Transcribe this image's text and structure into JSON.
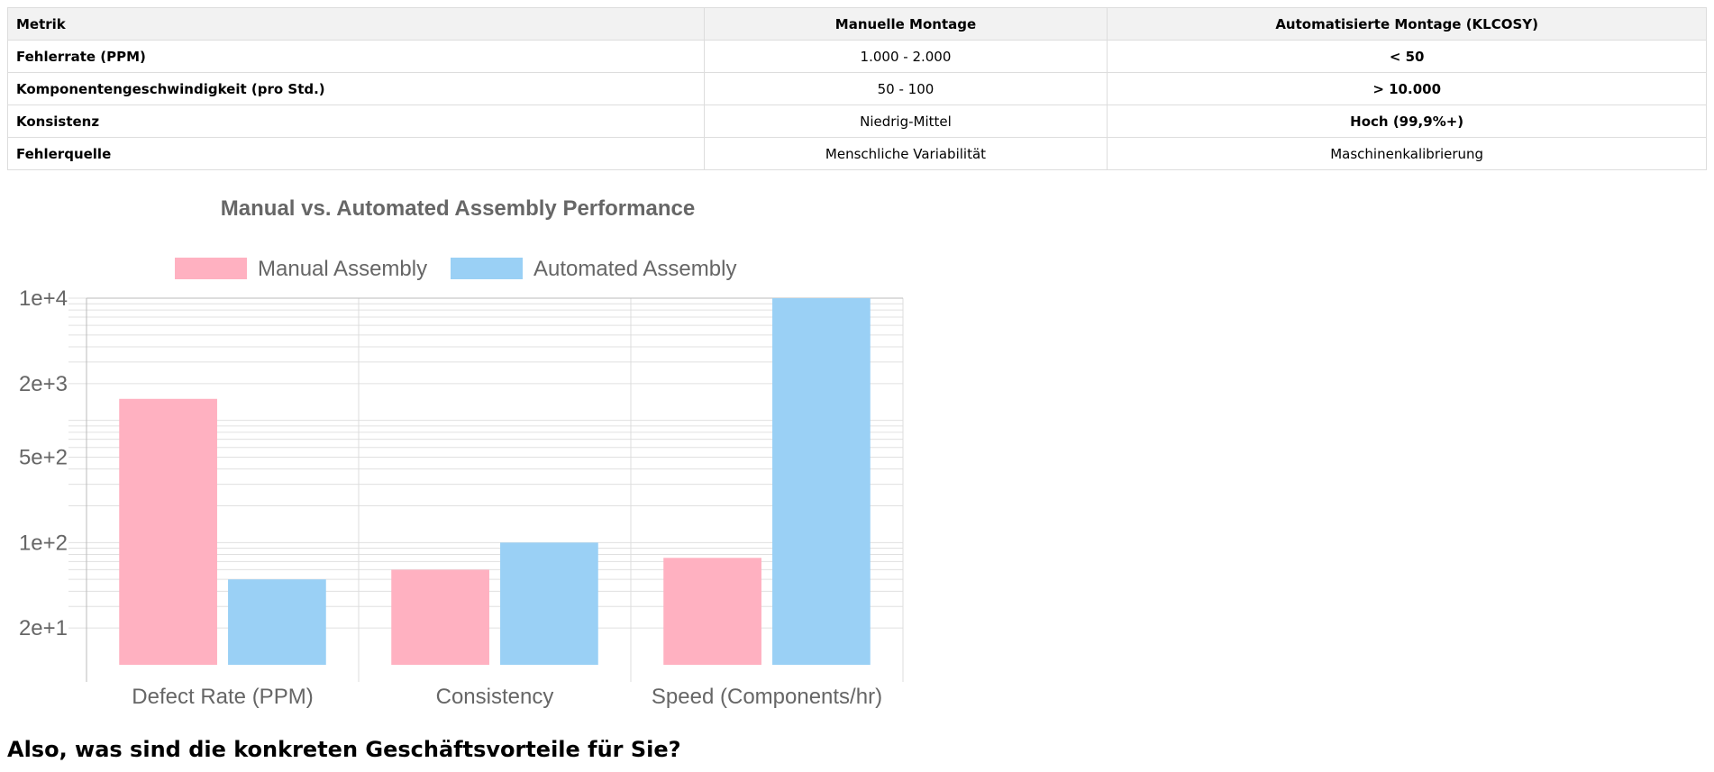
{
  "table": {
    "headers": [
      "Metrik",
      "Manuelle Montage",
      "Automatisierte Montage (KLCOSY)"
    ],
    "rows": [
      [
        "Fehlerrate (PPM)",
        "1.000 - 2.000",
        "< 50"
      ],
      [
        "Komponentengeschwindigkeit (pro Std.)",
        "50 - 100",
        "> 10.000"
      ],
      [
        "Konsistenz",
        "Niedrig-Mittel",
        "Hoch (99,9%+)"
      ],
      [
        "Fehlerquelle",
        "Menschliche Variabilität",
        "Maschinenkalibrierung"
      ]
    ]
  },
  "chart_data": {
    "type": "bar",
    "title": "Manual vs. Automated Assembly Performance",
    "categories": [
      "Defect Rate (PPM)",
      "Consistency",
      "Speed (Components/hr)"
    ],
    "series": [
      {
        "name": "Manual Assembly",
        "values": [
          1500,
          60,
          75
        ],
        "color": "#ffb1c1"
      },
      {
        "name": "Automated Assembly",
        "values": [
          50,
          100,
          10000
        ],
        "color": "#9ad0f5"
      }
    ],
    "yscale": "log",
    "ylim": [
      10,
      10000
    ],
    "ytick_labels": [
      {
        "value": 20,
        "label": "2e+1"
      },
      {
        "value": 100,
        "label": "1e+2"
      },
      {
        "value": 500,
        "label": "5e+2"
      },
      {
        "value": 2000,
        "label": "2e+3"
      },
      {
        "value": 10000,
        "label": "1e+4"
      }
    ],
    "legend": "top",
    "grid": true
  },
  "footer": {
    "question": "Also, was sind die konkreten Geschäftsvorteile für Sie?"
  }
}
